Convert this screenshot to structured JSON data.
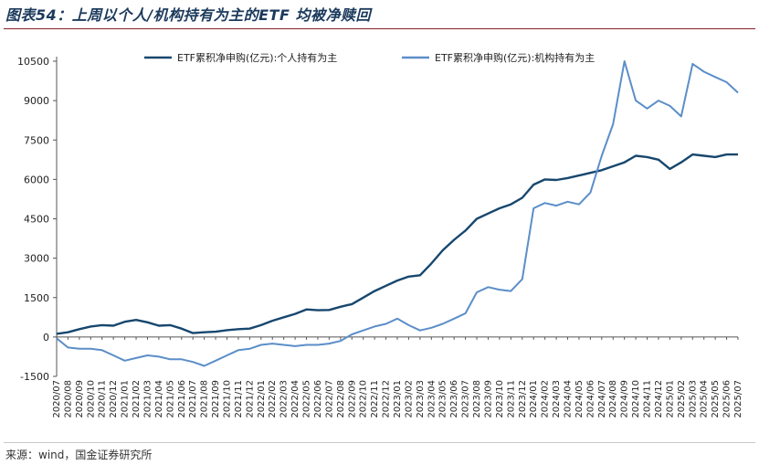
{
  "figure": {
    "title": "图表54：上周以个人/机构持有为主的ETF 均被净赎回",
    "source": "来源：wind，国金证券研究所"
  },
  "colors": {
    "individual": "#17476e",
    "institution": "#5b8ec8",
    "title": "#1b3a5c",
    "rule": "#8a1f2b"
  },
  "chart_data": {
    "type": "line",
    "yticks": [
      -1500,
      0,
      1500,
      3000,
      4500,
      6000,
      7500,
      9000,
      10500
    ],
    "ylim": [
      -1500,
      10500
    ],
    "grid": false,
    "legend_position": "top",
    "x": [
      "2020/07",
      "2020/08",
      "2020/09",
      "2020/10",
      "2020/11",
      "2020/12",
      "2021/01",
      "2021/02",
      "2021/03",
      "2021/04",
      "2021/05",
      "2021/06",
      "2021/07",
      "2021/08",
      "2021/09",
      "2021/10",
      "2021/11",
      "2021/12",
      "2022/01",
      "2022/02",
      "2022/03",
      "2022/04",
      "2022/05",
      "2022/06",
      "2022/07",
      "2022/08",
      "2022/09",
      "2022/10",
      "2022/11",
      "2022/12",
      "2023/01",
      "2023/02",
      "2023/03",
      "2023/04",
      "2023/05",
      "2023/06",
      "2023/07",
      "2023/08",
      "2023/09",
      "2023/10",
      "2023/11",
      "2023/12",
      "2024/01",
      "2024/02",
      "2024/03",
      "2024/04",
      "2024/05",
      "2024/06",
      "2024/07",
      "2024/08",
      "2024/09",
      "2024/10",
      "2024/11",
      "2024/12",
      "2025/01",
      "2025/02",
      "2025/03",
      "2025/04",
      "2025/05",
      "2025/06",
      "2025/07"
    ],
    "series": [
      {
        "name": "ETF累积净申购(亿元):个人持有为主",
        "color": "#17476e",
        "values": [
          120,
          180,
          300,
          400,
          450,
          430,
          580,
          650,
          560,
          430,
          450,
          320,
          150,
          180,
          200,
          260,
          300,
          320,
          450,
          620,
          750,
          880,
          1050,
          1020,
          1030,
          1150,
          1250,
          1500,
          1750,
          1950,
          2150,
          2300,
          2350,
          2800,
          3300,
          3700,
          4050,
          4500,
          4700,
          4900,
          5050,
          5300,
          5800,
          6000,
          5980,
          6050,
          6150,
          6250,
          6350,
          6500,
          6650,
          6900,
          6850,
          6750,
          6400,
          6650,
          6950,
          6900,
          6850,
          6950,
          6950
        ]
      },
      {
        "name": "ETF累积净申购(亿元):机构持有为主",
        "color": "#5b8ec8",
        "values": [
          -50,
          -400,
          -450,
          -450,
          -500,
          -700,
          -900,
          -800,
          -700,
          -750,
          -850,
          -850,
          -950,
          -1100,
          -900,
          -700,
          -500,
          -450,
          -300,
          -250,
          -300,
          -350,
          -300,
          -300,
          -250,
          -150,
          100,
          250,
          400,
          500,
          700,
          450,
          250,
          350,
          500,
          700,
          900,
          1700,
          1900,
          1800,
          1750,
          2200,
          4900,
          5100,
          5000,
          5150,
          5050,
          5500,
          6900,
          8100,
          10500,
          9000,
          8700,
          9000,
          8800,
          8400,
          10400,
          10100,
          9900,
          9700,
          9300
        ]
      }
    ]
  }
}
